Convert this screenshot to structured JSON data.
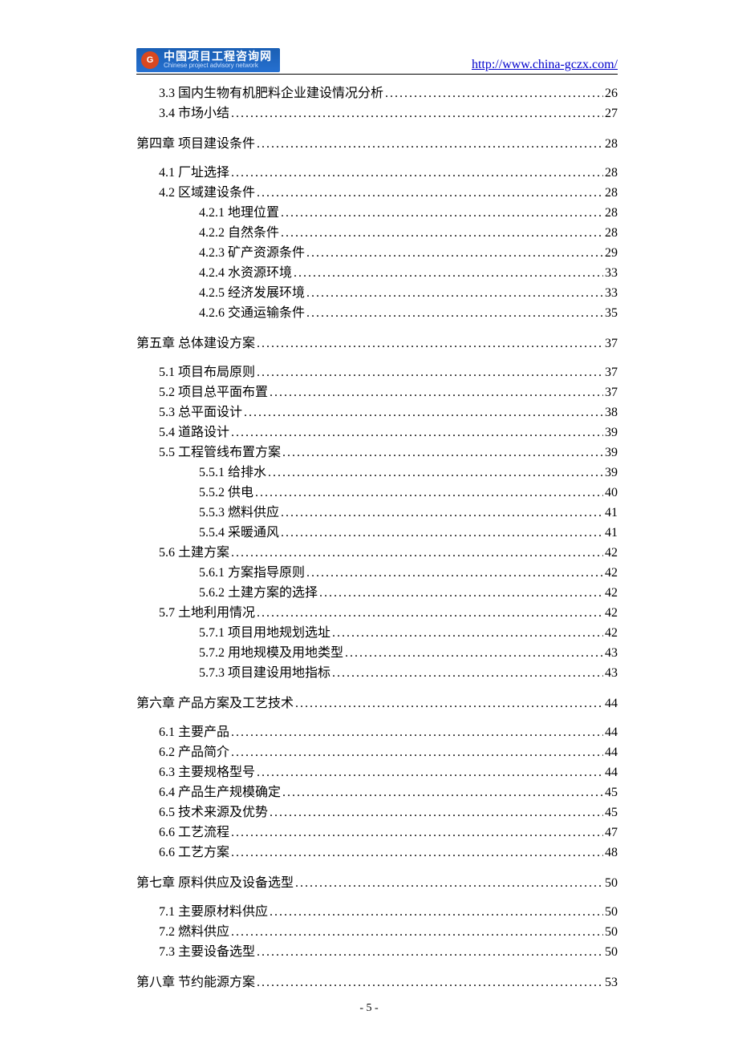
{
  "header": {
    "logo_cn": "中国项目工程咨询网",
    "logo_en": "Chinese project advisory network",
    "logo_icon_text": "G",
    "url": "http://www.china-gczx.com/"
  },
  "toc": [
    {
      "level": 1,
      "label": "3.3 国内生物有机肥料企业建设情况分析",
      "page": "26"
    },
    {
      "level": 1,
      "label": "3.4 市场小结",
      "page": "27"
    },
    {
      "level": 0,
      "label": "第四章  项目建设条件",
      "page": "28",
      "chapter": true
    },
    {
      "level": 1,
      "label": "4.1 厂址选择",
      "page": "28"
    },
    {
      "level": 1,
      "label": "4.2 区域建设条件",
      "page": "28"
    },
    {
      "level": 2,
      "label": "4.2.1 地理位置",
      "page": "28"
    },
    {
      "level": 2,
      "label": "4.2.2 自然条件",
      "page": "28"
    },
    {
      "level": 2,
      "label": "4.2.3 矿产资源条件",
      "page": "29"
    },
    {
      "level": 2,
      "label": "4.2.4 水资源环境",
      "page": "33"
    },
    {
      "level": 2,
      "label": "4.2.5 经济发展环境",
      "page": "33"
    },
    {
      "level": 2,
      "label": "4.2.6 交通运输条件",
      "page": "35"
    },
    {
      "level": 0,
      "label": "第五章  总体建设方案",
      "page": "37",
      "chapter": true
    },
    {
      "level": 1,
      "label": "5.1 项目布局原则",
      "page": "37"
    },
    {
      "level": 1,
      "label": "5.2 项目总平面布置",
      "page": "37"
    },
    {
      "level": 1,
      "label": "5.3 总平面设计",
      "page": "38"
    },
    {
      "level": 1,
      "label": "5.4 道路设计",
      "page": "39"
    },
    {
      "level": 1,
      "label": "5.5 工程管线布置方案",
      "page": "39"
    },
    {
      "level": 2,
      "label": "5.5.1 给排水",
      "page": "39"
    },
    {
      "level": 2,
      "label": "5.5.2 供电",
      "page": "40"
    },
    {
      "level": 2,
      "label": "5.5.3 燃料供应",
      "page": "41"
    },
    {
      "level": 2,
      "label": "5.5.4 采暖通风",
      "page": "41"
    },
    {
      "level": 1,
      "label": "5.6 土建方案",
      "page": "42"
    },
    {
      "level": 2,
      "label": "5.6.1 方案指导原则",
      "page": "42"
    },
    {
      "level": 2,
      "label": "5.6.2 土建方案的选择",
      "page": "42"
    },
    {
      "level": 1,
      "label": "5.7 土地利用情况",
      "page": "42"
    },
    {
      "level": 2,
      "label": "5.7.1 项目用地规划选址",
      "page": "42"
    },
    {
      "level": 2,
      "label": "5.7.2 用地规模及用地类型",
      "page": "43"
    },
    {
      "level": 2,
      "label": "5.7.3 项目建设用地指标",
      "page": "43"
    },
    {
      "level": 0,
      "label": "第六章   产品方案及工艺技术",
      "page": "44",
      "chapter": true
    },
    {
      "level": 1,
      "label": "6.1 主要产品",
      "page": "44"
    },
    {
      "level": 1,
      "label": "6.2 产品简介",
      "page": "44"
    },
    {
      "level": 1,
      "label": "6.3 主要规格型号",
      "page": "44"
    },
    {
      "level": 1,
      "label": "6.4 产品生产规模确定",
      "page": "45"
    },
    {
      "level": 1,
      "label": "6.5 技术来源及优势",
      "page": "45"
    },
    {
      "level": 1,
      "label": "6.6 工艺流程",
      "page": "47"
    },
    {
      "level": 1,
      "label": "6.6 工艺方案",
      "page": "48"
    },
    {
      "level": 0,
      "label": "第七章  原料供应及设备选型",
      "page": "50",
      "chapter": true
    },
    {
      "level": 1,
      "label": "7.1 主要原材料供应",
      "page": "50"
    },
    {
      "level": 1,
      "label": "7.2 燃料供应",
      "page": "50"
    },
    {
      "level": 1,
      "label": "7.3 主要设备选型",
      "page": "50"
    },
    {
      "level": 0,
      "label": "第八章  节约能源方案",
      "page": "53",
      "chapter": true
    }
  ],
  "page_number": "- 5 -"
}
